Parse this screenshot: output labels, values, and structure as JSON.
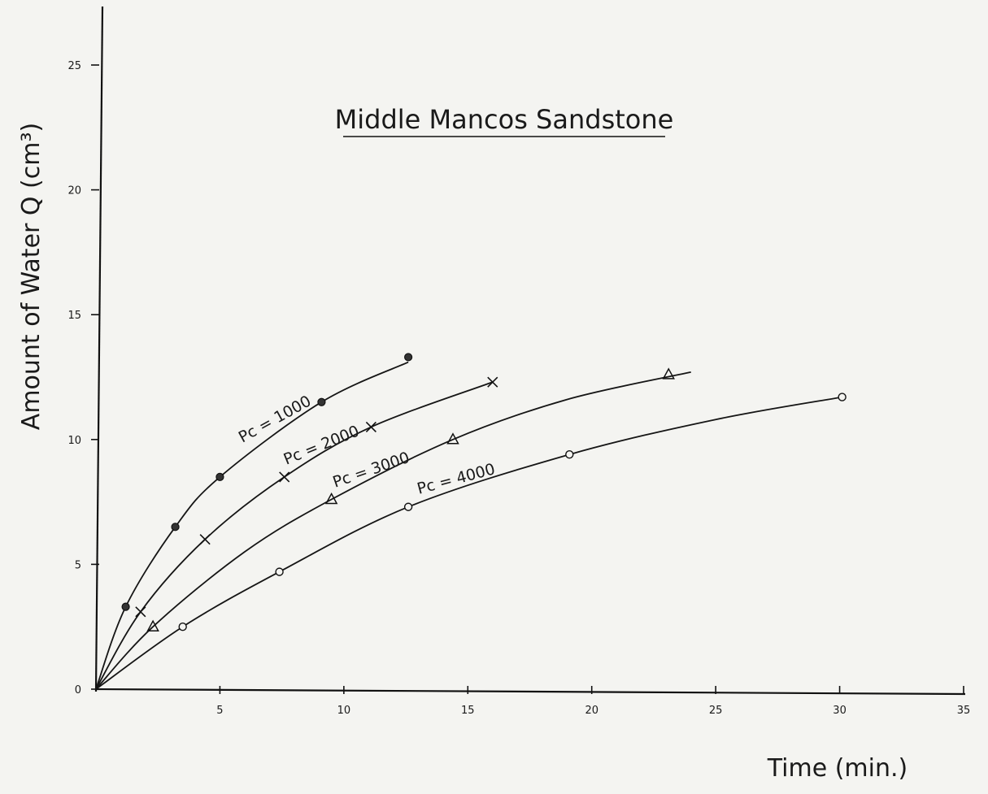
{
  "chart_data": {
    "type": "line",
    "title": "Middle Mancos Sandstone",
    "xlabel": "Time (min.)",
    "ylabel": "Amount of Water Q (cm³)",
    "xlim": [
      0,
      35
    ],
    "ylim": [
      0,
      25
    ],
    "x_ticks": [
      5,
      10,
      15,
      20,
      25,
      30,
      35
    ],
    "y_ticks": [
      0,
      5,
      10,
      15,
      20,
      25
    ],
    "grid": false,
    "legend": "none",
    "series": [
      {
        "name": "Pc = 1000",
        "marker": "filled-circle",
        "x": [
          0,
          1.2,
          3.2,
          5.0,
          9.1,
          12.6
        ],
        "y": [
          0,
          3.3,
          6.5,
          8.5,
          11.5,
          13.3
        ],
        "curve_x": [
          0,
          1.2,
          3.2,
          5.0,
          9.1,
          12.6
        ],
        "curve_y": [
          0,
          3.3,
          6.5,
          8.5,
          11.5,
          13.1
        ]
      },
      {
        "name": "Pc = 2000",
        "marker": "cross",
        "x": [
          0,
          1.8,
          4.4,
          7.6,
          11.1,
          16.0
        ],
        "y": [
          0,
          3.1,
          6.0,
          8.5,
          10.5,
          12.3
        ],
        "curve_x": [
          0,
          1.8,
          4.4,
          7.6,
          11.1,
          16.0
        ],
        "curve_y": [
          0,
          3.1,
          6.0,
          8.5,
          10.5,
          12.3
        ]
      },
      {
        "name": "Pc = 3000",
        "marker": "triangle",
        "x": [
          0,
          2.3,
          9.5,
          14.4,
          23.1
        ],
        "y": [
          0,
          2.5,
          7.6,
          10.0,
          12.6
        ],
        "curve_x": [
          0,
          2.3,
          6.0,
          9.5,
          14.4,
          19.0,
          24.0
        ],
        "curve_y": [
          0,
          2.5,
          5.5,
          7.6,
          10.0,
          11.6,
          12.7
        ]
      },
      {
        "name": "Pc = 4000",
        "marker": "open-circle",
        "x": [
          0,
          3.5,
          7.4,
          12.6,
          19.1,
          30.1
        ],
        "y": [
          0,
          2.5,
          4.7,
          7.3,
          9.4,
          11.7
        ],
        "curve_x": [
          0,
          3.5,
          7.4,
          12.6,
          19.1,
          25.0,
          30.1
        ],
        "curve_y": [
          0,
          2.5,
          4.7,
          7.3,
          9.4,
          10.8,
          11.7
        ]
      }
    ]
  }
}
